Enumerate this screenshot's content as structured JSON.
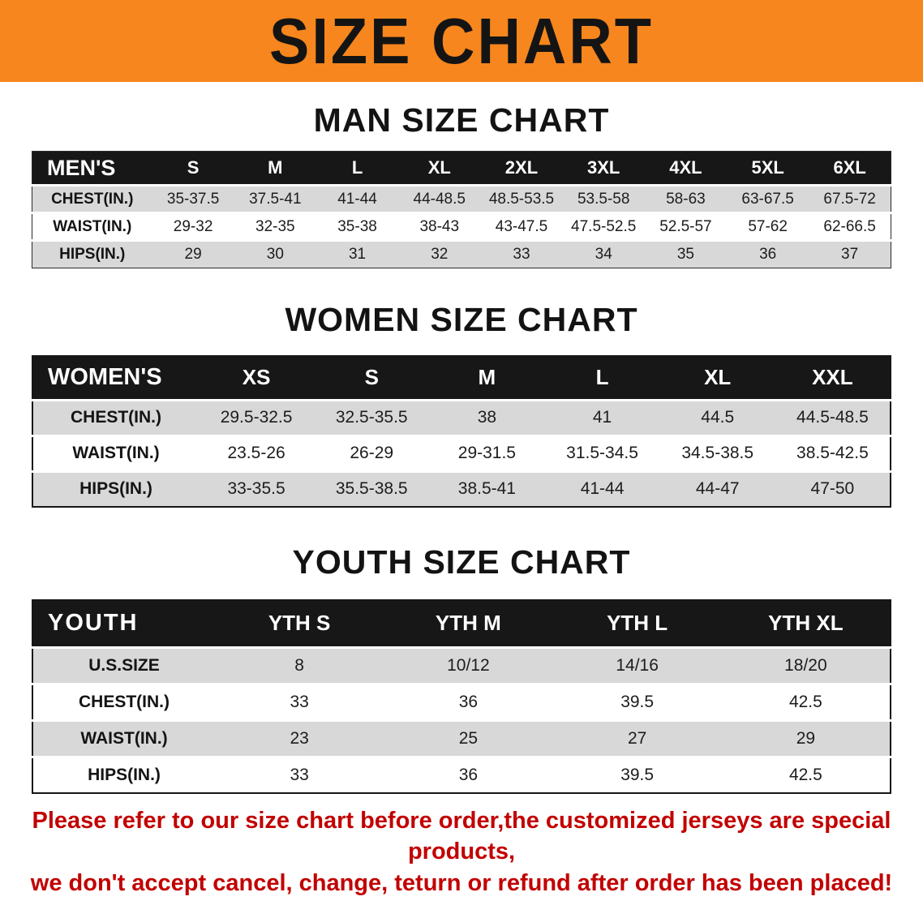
{
  "banner": {
    "title": "SIZE CHART",
    "bg_color": "#f6861d"
  },
  "sections": [
    {
      "id": "men",
      "heading": "MAN SIZE CHART",
      "table": {
        "header": [
          "MEN'S",
          "S",
          "M",
          "L",
          "XL",
          "2XL",
          "3XL",
          "4XL",
          "5XL",
          "6XL"
        ],
        "rows": [
          [
            "CHEST(IN.)",
            "35-37.5",
            "37.5-41",
            "41-44",
            "44-48.5",
            "48.5-53.5",
            "53.5-58",
            "58-63",
            "63-67.5",
            "67.5-72"
          ],
          [
            "WAIST(IN.)",
            "29-32",
            "32-35",
            "35-38",
            "38-43",
            "43-47.5",
            "47.5-52.5",
            "52.5-57",
            "57-62",
            "62-66.5"
          ],
          [
            "HIPS(IN.)",
            "29",
            "30",
            "31",
            "32",
            "33",
            "34",
            "35",
            "36",
            "37"
          ]
        ]
      }
    },
    {
      "id": "women",
      "heading": "WOMEN SIZE CHART",
      "table": {
        "header": [
          "WOMEN'S",
          "XS",
          "S",
          "M",
          "L",
          "XL",
          "XXL"
        ],
        "rows": [
          [
            "CHEST(IN.)",
            "29.5-32.5",
            "32.5-35.5",
            "38",
            "41",
            "44.5",
            "44.5-48.5"
          ],
          [
            "WAIST(IN.)",
            "23.5-26",
            "26-29",
            "29-31.5",
            "31.5-34.5",
            "34.5-38.5",
            "38.5-42.5"
          ],
          [
            "HIPS(IN.)",
            "33-35.5",
            "35.5-38.5",
            "38.5-41",
            "41-44",
            "44-47",
            "47-50"
          ]
        ]
      }
    },
    {
      "id": "youth",
      "heading": "YOUTH SIZE CHART",
      "table": {
        "header": [
          "YOUTH",
          "YTH S",
          "YTH M",
          "YTH L",
          "YTH XL"
        ],
        "rows": [
          [
            "U.S.SIZE",
            "8",
            "10/12",
            "14/16",
            "18/20"
          ],
          [
            "CHEST(IN.)",
            "33",
            "36",
            "39.5",
            "42.5"
          ],
          [
            "WAIST(IN.)",
            "23",
            "25",
            "27",
            "29"
          ],
          [
            "HIPS(IN.)",
            "33",
            "36",
            "39.5",
            "42.5"
          ]
        ]
      }
    }
  ],
  "disclaimer": {
    "line1": "Please refer to our size chart before order,the customized jerseys are special products,",
    "line2": "we don't accept cancel, change, teturn or refund after order has been placed!",
    "color": "#c20000"
  }
}
